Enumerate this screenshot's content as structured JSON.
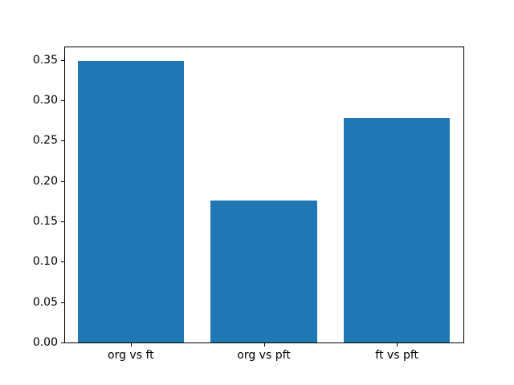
{
  "figure": {
    "background_color": "#ffffff",
    "title": ""
  },
  "chart_data": {
    "type": "bar",
    "title": "",
    "xlabel": "",
    "ylabel": "",
    "categories": [
      "org vs ft",
      "org vs pft",
      "ft vs pft"
    ],
    "values": [
      0.349,
      0.176,
      0.278
    ],
    "bar_color": "#1f77b4",
    "bar_width_fraction": 0.8,
    "ylim": [
      0,
      0.3665
    ],
    "yticks": [
      0.0,
      0.05,
      0.1,
      0.15,
      0.2,
      0.25,
      0.3,
      0.35
    ],
    "ytick_labels": [
      "0.00",
      "0.05",
      "0.10",
      "0.15",
      "0.20",
      "0.25",
      "0.30",
      "0.35"
    ],
    "grid": false,
    "legend_position": "none",
    "axis_color": "#000000",
    "text_color": "#000000"
  }
}
